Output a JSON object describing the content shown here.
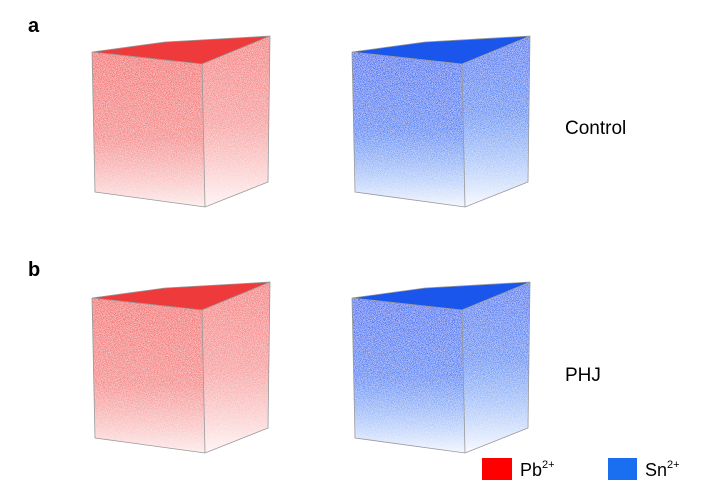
{
  "panels": [
    {
      "label": "a",
      "condition": "Control"
    },
    {
      "label": "b",
      "condition": "PHJ"
    }
  ],
  "legend": [
    {
      "base": "Pb",
      "sup": "2+"
    },
    {
      "base": "Sn",
      "sup": "2+"
    }
  ]
}
